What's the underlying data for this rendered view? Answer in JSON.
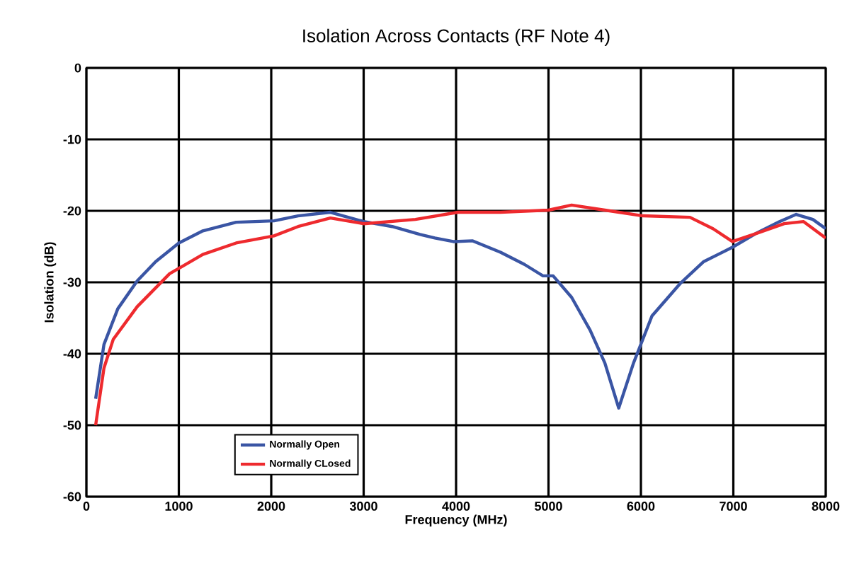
{
  "chart_data": {
    "type": "line",
    "title": "Isolation Across Contacts (RF Note 4)",
    "xlabel": "Frequency (MHz)",
    "ylabel": "Isolation (dB)",
    "xlim": [
      0,
      8000
    ],
    "xticks": [
      0,
      1000,
      2000,
      3000,
      4000,
      5000,
      6000,
      7000,
      8000
    ],
    "ylim": [
      -60,
      0
    ],
    "yticks": [
      -60,
      -50,
      -40,
      -30,
      -20,
      -10,
      0
    ],
    "grid": true,
    "legend": "bottom left",
    "marker": "none",
    "line_style": "solid",
    "series": [
      {
        "name": "Normally Open",
        "color": "#3a55a4",
        "x": [
          100,
          190,
          340,
          550,
          750,
          1000,
          1260,
          1620,
          2030,
          2290,
          2640,
          3000,
          3310,
          3610,
          3770,
          3970,
          4180,
          4480,
          4740,
          4940,
          5050,
          5250,
          5450,
          5610,
          5760,
          5920,
          6120,
          6430,
          6680,
          6990,
          7240,
          7500,
          7680,
          7860,
          8000
        ],
        "values": [
          -46.3,
          -38.7,
          -33.7,
          -29.8,
          -27.1,
          -24.5,
          -22.8,
          -21.6,
          -21.4,
          -20.7,
          -20.2,
          -21.5,
          -22.2,
          -23.3,
          -23.8,
          -24.3,
          -24.2,
          -25.8,
          -27.5,
          -29.1,
          -29.1,
          -32.1,
          -36.7,
          -41.3,
          -47.6,
          -41.3,
          -34.7,
          -30.1,
          -27.1,
          -25.1,
          -23.2,
          -21.5,
          -20.5,
          -21.2,
          -22.5
        ]
      },
      {
        "name": "Normally CLosed",
        "color": "#ee2a2e",
        "x": [
          100,
          190,
          290,
          550,
          900,
          1260,
          1620,
          2030,
          2290,
          2640,
          3000,
          3560,
          4020,
          4480,
          5000,
          5250,
          5610,
          6020,
          6530,
          6780,
          6990,
          7240,
          7550,
          7760,
          8000
        ],
        "values": [
          -50.0,
          -42.0,
          -38.0,
          -33.4,
          -28.8,
          -26.1,
          -24.5,
          -23.5,
          -22.2,
          -21.0,
          -21.8,
          -21.2,
          -20.2,
          -20.2,
          -19.9,
          -19.2,
          -19.9,
          -20.7,
          -20.9,
          -22.5,
          -24.3,
          -23.2,
          -21.8,
          -21.5,
          -23.8
        ]
      }
    ]
  }
}
